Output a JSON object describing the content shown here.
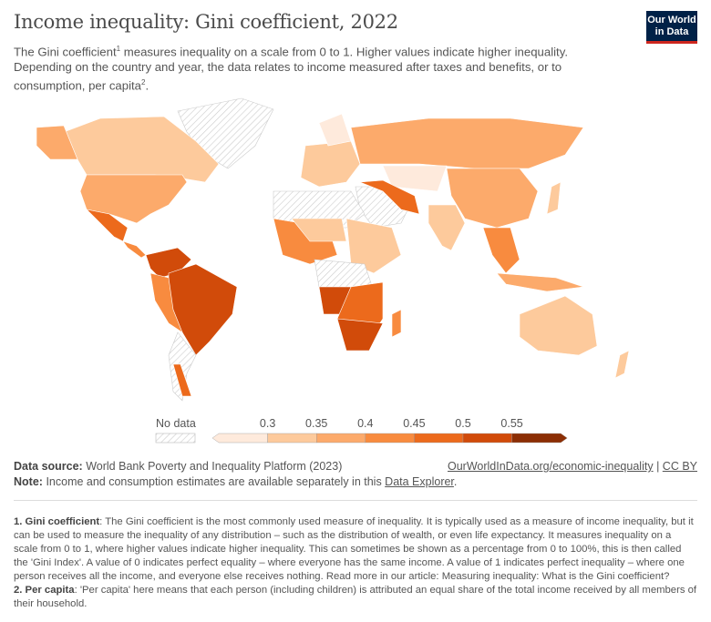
{
  "title": "Income inequality: Gini coefficient, 2022",
  "subtitle": {
    "line1": "The Gini coefficient",
    "sup1": "1",
    "line1b": " measures inequality on a scale from 0 to 1. Higher values indicate higher inequality. Depending on the country and year, the data relates to income measured after taxes and benefits, or to consumption, per capita",
    "sup2": "2",
    "end": "."
  },
  "logo": {
    "line1": "Our World",
    "line2": "in Data"
  },
  "legend": {
    "no_data": "No data",
    "ticks": [
      "0.3",
      "0.35",
      "0.4",
      "0.45",
      "0.5",
      "0.55"
    ],
    "colors": [
      "#feeadc",
      "#fdca9c",
      "#fcaa6b",
      "#f88b3f",
      "#ec6a1c",
      "#d14b0a",
      "#8c2e05"
    ],
    "no_data_color": "#e8e8e8"
  },
  "footer": {
    "source_label": "Data source:",
    "source": "World Bank Poverty and Inequality Platform (2023)",
    "link": "OurWorldInData.org/economic-inequality",
    "sep": "|",
    "license": "CC BY",
    "note_label": "Note:",
    "note": "Income and consumption estimates are available separately in this ",
    "note_link": "Data Explorer",
    "note_end": "."
  },
  "notes": [
    {
      "label": "1. Gini coefficient",
      "text": ": The Gini coefficient is the most commonly used measure of inequality. It is typically used as a measure of income inequality, but it can be used to measure the inequality of any distribution – such as the distribution of wealth, or even life expectancy. It measures inequality on a scale from 0 to 1, where higher values indicate higher inequality. This can sometimes be shown as a percentage from 0 to 100%, this is then called the 'Gini Index'. A value of 0 indicates perfect equality – where everyone has the same income. A value of 1 indicates perfect inequality – where one person receives all the income, and everyone else receives nothing. Read more in our article: Measuring inequality: What is the Gini coefficient?"
    },
    {
      "label": "2. Per capita",
      "text": ": 'Per capita' here means that each person (including children) is attributed an equal share of the total income received by all members of their household."
    }
  ]
}
